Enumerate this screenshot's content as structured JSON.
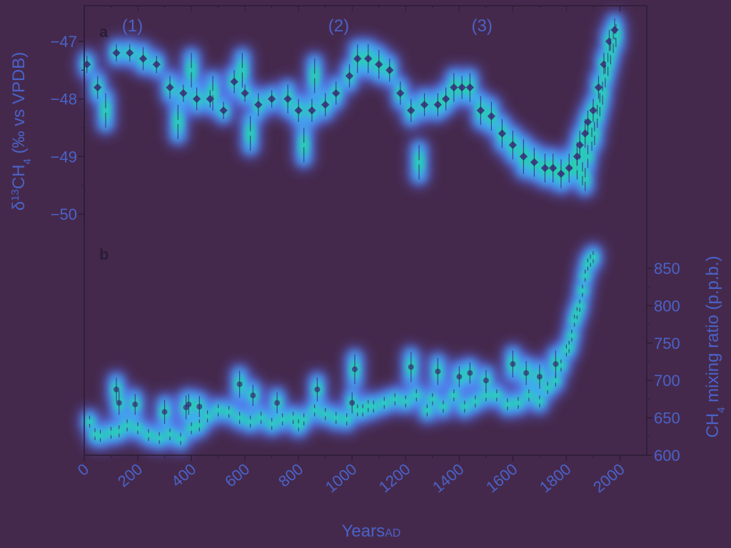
{
  "colors": {
    "background": "#45294c",
    "glow_outer": "#5a6ef5",
    "glow_mid": "#3cb6ee",
    "glow_core": "#22d6a4",
    "glow_hot": "#b4ef3a",
    "marker_dark": "#3a2a78",
    "marker_cyan": "#30c8c8",
    "axis": "#2a1d36",
    "label_color": "#4a62c8"
  },
  "chart_data": [
    {
      "panel": "a",
      "type": "scatter",
      "panel_label": "a",
      "ylabel_parts": [
        "δ",
        "13",
        "CH",
        "4",
        " (‰ vs VPDB)"
      ],
      "ylim": [
        -50.2,
        -46.6
      ],
      "yticks": [
        -47,
        -48,
        -49,
        -50
      ],
      "ytick_labels": [
        "−47",
        "−48",
        "−49",
        "−50"
      ],
      "annotations": [
        "(1)",
        "(2)",
        "(3)"
      ],
      "annotation_x": [
        180,
        950,
        1485
      ],
      "series": [
        {
          "marker": "diamond",
          "x": [
            10,
            50,
            120,
            170,
            220,
            270,
            320,
            370,
            420,
            470,
            520,
            560,
            600,
            650,
            700,
            760,
            800,
            850,
            900,
            940,
            990,
            1020,
            1060,
            1100,
            1140,
            1180,
            1220,
            1270,
            1320,
            1350,
            1380,
            1410,
            1440,
            1480,
            1520,
            1560,
            1600,
            1640,
            1680,
            1720,
            1750,
            1780,
            1810,
            1840,
            1850,
            1870,
            1880,
            1900,
            1920,
            1940,
            1960,
            1980
          ],
          "y": [
            -47.4,
            -47.8,
            -47.2,
            -47.2,
            -47.3,
            -47.4,
            -47.8,
            -47.9,
            -48.0,
            -48.0,
            -48.2,
            -47.7,
            -47.9,
            -48.1,
            -48.0,
            -48.0,
            -48.2,
            -48.2,
            -48.1,
            -47.9,
            -47.6,
            -47.3,
            -47.3,
            -47.4,
            -47.5,
            -47.9,
            -48.2,
            -48.1,
            -48.1,
            -48.0,
            -47.8,
            -47.8,
            -47.8,
            -48.2,
            -48.3,
            -48.6,
            -48.8,
            -49.0,
            -49.1,
            -49.2,
            -49.2,
            -49.3,
            -49.2,
            -49.0,
            -48.8,
            -48.6,
            -48.4,
            -48.2,
            -47.8,
            -47.4,
            -47.0,
            -46.8
          ],
          "err": [
            0.15,
            0.2,
            0.15,
            0.15,
            0.2,
            0.15,
            0.2,
            0.15,
            0.2,
            0.15,
            0.15,
            0.2,
            0.15,
            0.2,
            0.15,
            0.25,
            0.2,
            0.2,
            0.2,
            0.2,
            0.2,
            0.25,
            0.25,
            0.25,
            0.2,
            0.2,
            0.2,
            0.2,
            0.2,
            0.2,
            0.25,
            0.2,
            0.25,
            0.25,
            0.25,
            0.25,
            0.25,
            0.3,
            0.25,
            0.25,
            0.25,
            0.25,
            0.25,
            0.25,
            0.25,
            0.25,
            0.2,
            0.2,
            0.2,
            0.2,
            0.2,
            0.2
          ]
        },
        {
          "marker": "dot",
          "x": [
            80,
            350,
            400,
            480,
            590,
            620,
            820,
            860,
            1250,
            1840,
            1860,
            1870,
            1880,
            1895,
            1905,
            1915,
            1925,
            1935,
            1945,
            1955,
            1965,
            1975,
            1985
          ],
          "y": [
            -48.2,
            -48.4,
            -47.5,
            -47.9,
            -47.5,
            -48.6,
            -48.8,
            -47.6,
            -49.1,
            -49.2,
            -49.3,
            -49.4,
            -49.0,
            -48.7,
            -48.6,
            -48.3,
            -48.1,
            -47.9,
            -47.6,
            -47.4,
            -47.2,
            -47.0,
            -46.9
          ],
          "err": [
            0.3,
            0.3,
            0.3,
            0.3,
            0.3,
            0.3,
            0.3,
            0.3,
            0.3,
            0.2,
            0.2,
            0.2,
            0.2,
            0.2,
            0.2,
            0.2,
            0.2,
            0.2,
            0.2,
            0.2,
            0.2,
            0.2,
            0.2
          ]
        }
      ]
    },
    {
      "panel": "b",
      "type": "scatter",
      "panel_label": "b",
      "ylabel_parts": [
        "CH",
        "4",
        " mixing ratio (p.p.b.)"
      ],
      "ylim": [
        600,
        880
      ],
      "yticks": [
        600,
        650,
        700,
        750,
        800,
        850
      ],
      "ytick_labels": [
        "600",
        "650",
        "700",
        "750",
        "800",
        "850"
      ],
      "series": [
        {
          "marker": "dot",
          "x": [
            20,
            40,
            60,
            100,
            130,
            160,
            200,
            240,
            280,
            320,
            360,
            400,
            430,
            460,
            500,
            540,
            580,
            620,
            660,
            700,
            740,
            780,
            800,
            820,
            860,
            900,
            940,
            980,
            1020,
            1040,
            1060,
            1080,
            1120,
            1160,
            1200,
            1240,
            1280,
            1300,
            1340,
            1380,
            1420,
            1460,
            1500,
            1540,
            1580,
            1620,
            1660,
            1700,
            1730,
            1760,
            1780,
            1800,
            1810,
            1820,
            1830,
            1840,
            1850,
            1860,
            1870,
            1880,
            1890,
            1900
          ],
          "y": [
            645,
            628,
            626,
            630,
            632,
            640,
            636,
            627,
            623,
            628,
            622,
            636,
            640,
            652,
            660,
            658,
            650,
            645,
            650,
            642,
            648,
            650,
            640,
            648,
            660,
            655,
            650,
            648,
            660,
            660,
            666,
            665,
            670,
            675,
            672,
            680,
            660,
            675,
            665,
            680,
            665,
            672,
            680,
            680,
            668,
            670,
            680,
            672,
            690,
            700,
            720,
            740,
            745,
            760,
            780,
            790,
            800,
            820,
            840,
            855,
            860,
            865
          ],
          "err": [
            8,
            8,
            8,
            8,
            8,
            8,
            8,
            8,
            8,
            8,
            8,
            8,
            8,
            8,
            8,
            8,
            8,
            8,
            8,
            8,
            8,
            8,
            8,
            8,
            8,
            8,
            8,
            8,
            8,
            8,
            8,
            8,
            8,
            8,
            8,
            8,
            8,
            8,
            8,
            8,
            8,
            8,
            8,
            8,
            8,
            8,
            8,
            8,
            8,
            8,
            8,
            8,
            8,
            8,
            8,
            8,
            8,
            8,
            8,
            8,
            8,
            8
          ]
        },
        {
          "marker": "open-circle",
          "x": [
            120,
            130,
            190,
            300,
            380,
            390,
            430,
            580,
            630,
            720,
            870,
            1000,
            1010,
            1220,
            1320,
            1400,
            1440,
            1500,
            1600,
            1650,
            1700,
            1760
          ],
          "y": [
            688,
            670,
            668,
            658,
            664,
            668,
            665,
            695,
            680,
            670,
            688,
            670,
            715,
            718,
            712,
            705,
            710,
            700,
            722,
            710,
            705,
            722
          ],
          "err": [
            16,
            16,
            14,
            16,
            16,
            14,
            14,
            18,
            14,
            14,
            16,
            14,
            20,
            20,
            18,
            14,
            14,
            14,
            18,
            16,
            16,
            18
          ]
        }
      ]
    }
  ],
  "x_axis": {
    "label_main": "Years",
    "label_sub": "AD",
    "xlim": [
      0,
      2100
    ],
    "ticks": [
      0,
      200,
      400,
      600,
      800,
      1000,
      1200,
      1400,
      1600,
      1800,
      2000
    ],
    "tick_labels": [
      "0",
      "200",
      "400",
      "600",
      "800",
      "1000",
      "1200",
      "1400",
      "1600",
      "1800",
      "2000"
    ]
  }
}
